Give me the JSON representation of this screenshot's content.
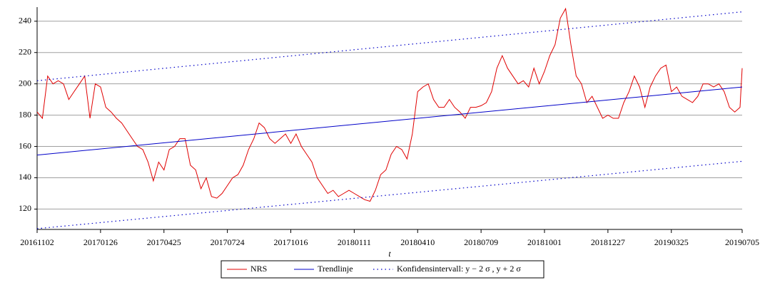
{
  "chart_data": {
    "type": "line",
    "x_label": "t",
    "x": [
      0,
      5,
      10,
      15,
      20,
      25,
      30,
      35,
      40,
      45,
      50,
      55,
      60,
      65,
      70,
      75,
      80,
      85,
      90,
      95,
      100,
      105,
      110,
      115,
      120,
      125,
      130,
      135,
      140,
      145,
      150,
      155,
      160,
      165,
      170,
      175,
      180,
      185,
      190,
      195,
      200,
      205,
      210,
      215,
      220,
      225,
      230,
      235,
      240,
      245,
      250,
      255,
      260,
      265,
      270,
      275,
      280,
      285,
      290,
      295,
      300,
      305,
      310,
      315,
      320,
      325,
      330,
      335,
      340,
      345,
      350,
      355,
      360,
      365,
      370,
      375,
      380,
      385,
      390,
      395,
      400,
      405,
      410,
      415,
      420,
      425,
      430,
      435,
      440,
      445,
      450,
      455,
      460,
      465,
      470,
      475,
      480,
      485,
      490,
      495,
      500,
      505,
      510,
      515,
      520,
      525,
      530,
      535,
      540,
      545,
      550,
      555,
      560,
      565,
      570,
      575,
      580,
      585,
      590,
      595,
      600,
      605,
      610,
      615,
      620,
      625,
      630,
      635,
      640,
      645,
      650,
      655,
      660,
      665,
      667
    ],
    "xlim": [
      0,
      667
    ],
    "xticks": [
      {
        "value": 0,
        "label": "20161102"
      },
      {
        "value": 60,
        "label": "20170126"
      },
      {
        "value": 120,
        "label": "20170425"
      },
      {
        "value": 180,
        "label": "20170724"
      },
      {
        "value": 240,
        "label": "20171016"
      },
      {
        "value": 300,
        "label": "20180111"
      },
      {
        "value": 360,
        "label": "20180410"
      },
      {
        "value": 420,
        "label": "20180709"
      },
      {
        "value": 480,
        "label": "20181001"
      },
      {
        "value": 540,
        "label": "20181227"
      },
      {
        "value": 600,
        "label": "20190325"
      },
      {
        "value": 667,
        "label": "20190705"
      }
    ],
    "ylim": [
      107,
      249
    ],
    "yticks": [
      120,
      140,
      160,
      180,
      200,
      220,
      240
    ],
    "grid": true,
    "series": [
      {
        "name": "NRS",
        "color": "#e00000",
        "values": [
          182,
          178,
          205,
          200,
          202,
          200,
          190,
          195,
          200,
          205,
          178,
          200,
          198,
          185,
          182,
          178,
          175,
          170,
          165,
          160,
          158,
          150,
          138,
          150,
          145,
          158,
          160,
          165,
          165,
          148,
          145,
          133,
          140,
          128,
          127,
          130,
          135,
          140,
          142,
          148,
          158,
          165,
          175,
          172,
          165,
          162,
          165,
          168,
          162,
          168,
          160,
          155,
          150,
          140,
          135,
          130,
          132,
          128,
          130,
          132,
          130,
          128,
          126,
          125,
          132,
          142,
          145,
          155,
          160,
          158,
          152,
          168,
          195,
          198,
          200,
          190,
          185,
          185,
          190,
          185,
          182,
          178,
          185,
          185,
          186,
          188,
          195,
          210,
          218,
          210,
          205,
          200,
          202,
          198,
          210,
          200,
          208,
          218,
          225,
          242,
          248,
          225,
          205,
          200,
          188,
          192,
          185,
          178,
          180,
          178,
          178,
          188,
          195,
          205,
          198,
          185,
          198,
          205,
          210,
          212,
          195,
          198,
          192,
          190,
          188,
          192,
          200,
          200,
          198,
          200,
          195,
          185,
          182,
          185,
          210
        ]
      },
      {
        "name": "Trendlinje",
        "color": "#0000c8",
        "x": [
          0,
          667
        ],
        "values": [
          154.5,
          198
        ]
      },
      {
        "name": "Konfidensintervall:  y − 2 σ , y + 2 σ",
        "color": "#0000c8",
        "x": [
          0,
          667
        ],
        "lower": [
          107.5,
          150.5
        ],
        "upper": [
          202,
          246
        ]
      }
    ]
  }
}
